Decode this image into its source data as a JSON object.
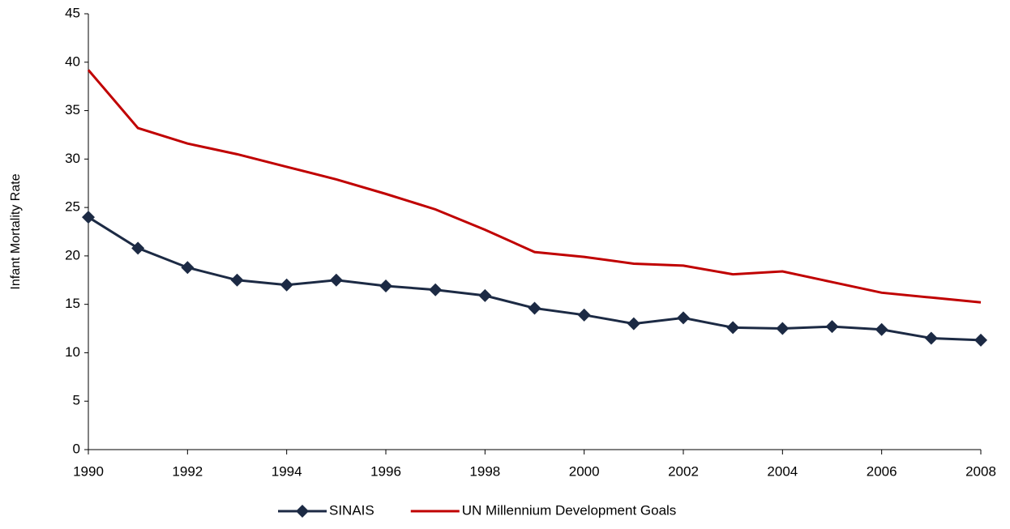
{
  "chart_data": {
    "type": "line",
    "y_label": "Infant Mortality Rate",
    "x": [
      1990,
      1991,
      1992,
      1993,
      1994,
      1995,
      1996,
      1997,
      1998,
      1999,
      2000,
      2001,
      2002,
      2003,
      2004,
      2005,
      2006,
      2007,
      2008
    ],
    "series": [
      {
        "name": "SINAIS",
        "color": "#1c2a44",
        "marker": "diamond",
        "values": [
          24.0,
          20.8,
          18.8,
          17.5,
          17.0,
          17.5,
          16.9,
          16.5,
          15.9,
          14.6,
          13.9,
          13.0,
          13.6,
          12.6,
          12.5,
          12.7,
          12.4,
          11.5,
          11.3
        ]
      },
      {
        "name": "UN Millennium Development Goals",
        "color": "#c00000",
        "marker": null,
        "values": [
          39.2,
          33.2,
          31.6,
          30.5,
          29.2,
          27.9,
          26.4,
          24.8,
          22.7,
          20.4,
          19.9,
          19.2,
          19.0,
          18.1,
          18.4,
          17.3,
          16.2,
          15.7,
          15.2
        ]
      }
    ],
    "xlim": [
      1990,
      2008
    ],
    "xticks": [
      1990,
      1992,
      1994,
      1996,
      1998,
      2000,
      2002,
      2004,
      2006,
      2008
    ],
    "ylim": [
      0,
      45
    ],
    "yticks": [
      0,
      5,
      10,
      15,
      20,
      25,
      30,
      35,
      40,
      45
    ],
    "grid": false,
    "legend": "bottom"
  }
}
